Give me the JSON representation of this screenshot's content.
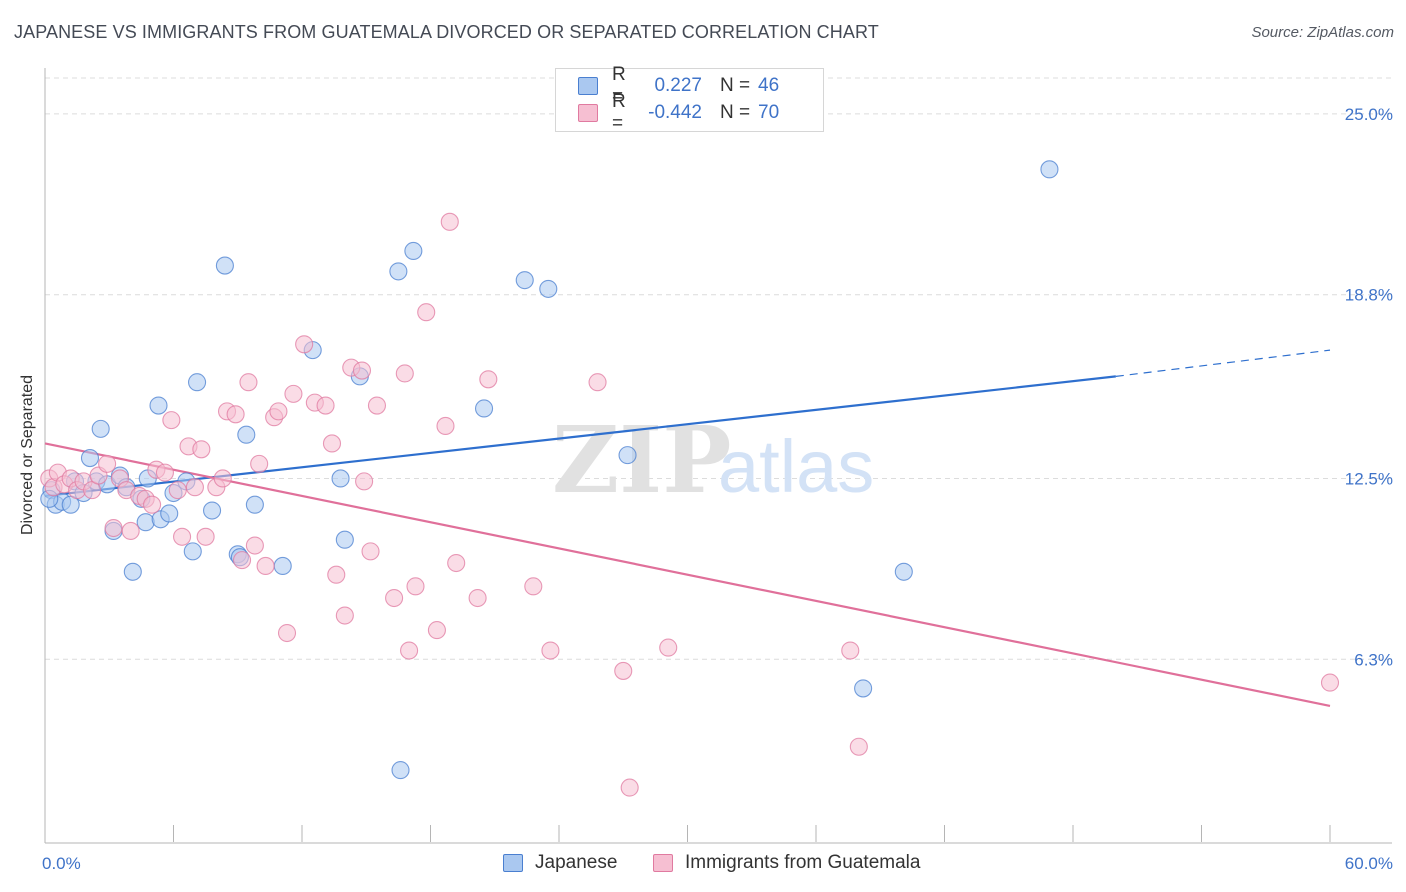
{
  "title": "JAPANESE VS IMMIGRANTS FROM GUATEMALA DIVORCED OR SEPARATED CORRELATION CHART",
  "source": "Source: ZipAtlas.com",
  "watermark": {
    "zip": "ZIP",
    "atlas": "atlas"
  },
  "legend": {
    "r_label": "R =",
    "n_label": "N =",
    "rows": [
      {
        "r_value": "0.227",
        "n_value": "46"
      },
      {
        "r_value": "-0.442",
        "n_value": "70"
      }
    ]
  },
  "colors": {
    "series1_fill": "#aac8f0",
    "series1_stroke": "#4a7fd0",
    "series1_line": "#2e6fce",
    "series2_fill": "#f6bfd2",
    "series2_stroke": "#e07aa0",
    "series2_line": "#e0709a",
    "tick_label": "#3f73c8",
    "grid": "#dcdcdc"
  },
  "chart_data": {
    "type": "scatter",
    "title": "JAPANESE VS IMMIGRANTS FROM GUATEMALA DIVORCED OR SEPARATED CORRELATION CHART",
    "xlabel": "",
    "ylabel": "Divorced or Separated",
    "xlim": [
      0,
      60
    ],
    "ylim": [
      0,
      26.3
    ],
    "x_tick_labels": [
      "0.0%",
      "60.0%"
    ],
    "y_ticks": [
      6.3,
      12.5,
      18.8,
      25.0
    ],
    "y_tick_labels": [
      "6.3%",
      "12.5%",
      "18.8%",
      "25.0%"
    ],
    "grid": true,
    "legend_placement": "top-center",
    "series": [
      {
        "name": "Japanese",
        "r": 0.227,
        "n": 46,
        "trend": {
          "x0": 0,
          "y0": 11.9,
          "x1": 50,
          "y1": 16.0,
          "dash_to_x": 60,
          "dash_to_y": 16.9
        },
        "points": [
          [
            0.3,
            12.1
          ],
          [
            0.5,
            11.6
          ],
          [
            0.8,
            11.7
          ],
          [
            1.2,
            11.6
          ],
          [
            1.4,
            12.4
          ],
          [
            1.8,
            12.0
          ],
          [
            2.1,
            13.2
          ],
          [
            2.6,
            14.2
          ],
          [
            2.4,
            12.4
          ],
          [
            3.2,
            10.7
          ],
          [
            2.9,
            12.3
          ],
          [
            3.5,
            12.6
          ],
          [
            3.8,
            12.2
          ],
          [
            4.1,
            9.3
          ],
          [
            4.5,
            11.8
          ],
          [
            4.7,
            11.0
          ],
          [
            4.8,
            12.5
          ],
          [
            5.4,
            11.1
          ],
          [
            5.3,
            15.0
          ],
          [
            5.8,
            11.3
          ],
          [
            6.0,
            12.0
          ],
          [
            6.6,
            12.4
          ],
          [
            6.9,
            10.0
          ],
          [
            7.1,
            15.8
          ],
          [
            7.8,
            11.4
          ],
          [
            8.4,
            19.8
          ],
          [
            9.0,
            9.9
          ],
          [
            9.1,
            9.8
          ],
          [
            9.4,
            14.0
          ],
          [
            9.8,
            11.6
          ],
          [
            11.1,
            9.5
          ],
          [
            12.5,
            16.9
          ],
          [
            13.8,
            12.5
          ],
          [
            14.0,
            10.4
          ],
          [
            14.7,
            16.0
          ],
          [
            16.5,
            19.6
          ],
          [
            17.2,
            20.3
          ],
          [
            16.6,
            2.5
          ],
          [
            20.5,
            14.9
          ],
          [
            22.4,
            19.3
          ],
          [
            23.5,
            19.0
          ],
          [
            27.2,
            13.3
          ],
          [
            38.2,
            5.3
          ],
          [
            40.1,
            9.3
          ],
          [
            46.9,
            23.1
          ],
          [
            0.2,
            11.8
          ]
        ]
      },
      {
        "name": "Immigrants from Guatemala",
        "r": -0.442,
        "n": 70,
        "trend": {
          "x0": 0,
          "y0": 13.7,
          "x1": 60,
          "y1": 4.7
        },
        "points": [
          [
            0.2,
            12.5
          ],
          [
            0.4,
            12.2
          ],
          [
            0.6,
            12.7
          ],
          [
            0.9,
            12.3
          ],
          [
            1.2,
            12.5
          ],
          [
            1.5,
            12.1
          ],
          [
            1.8,
            12.4
          ],
          [
            2.2,
            12.1
          ],
          [
            2.5,
            12.6
          ],
          [
            2.9,
            13.0
          ],
          [
            3.2,
            10.8
          ],
          [
            3.5,
            12.5
          ],
          [
            3.8,
            12.1
          ],
          [
            4.0,
            10.7
          ],
          [
            4.4,
            11.9
          ],
          [
            4.7,
            11.8
          ],
          [
            5.0,
            11.6
          ],
          [
            5.2,
            12.8
          ],
          [
            5.6,
            12.7
          ],
          [
            5.9,
            14.5
          ],
          [
            6.2,
            12.1
          ],
          [
            6.4,
            10.5
          ],
          [
            6.7,
            13.6
          ],
          [
            7.0,
            12.2
          ],
          [
            7.3,
            13.5
          ],
          [
            7.5,
            10.5
          ],
          [
            8.0,
            12.2
          ],
          [
            8.3,
            12.5
          ],
          [
            8.5,
            14.8
          ],
          [
            8.9,
            14.7
          ],
          [
            9.2,
            9.7
          ],
          [
            9.5,
            15.8
          ],
          [
            9.8,
            10.2
          ],
          [
            10.0,
            13.0
          ],
          [
            10.3,
            9.5
          ],
          [
            10.7,
            14.6
          ],
          [
            10.9,
            14.8
          ],
          [
            11.3,
            7.2
          ],
          [
            11.6,
            15.4
          ],
          [
            12.1,
            17.1
          ],
          [
            12.6,
            15.1
          ],
          [
            13.1,
            15.0
          ],
          [
            13.4,
            13.7
          ],
          [
            13.6,
            9.2
          ],
          [
            14.0,
            7.8
          ],
          [
            14.3,
            16.3
          ],
          [
            14.8,
            16.2
          ],
          [
            14.9,
            12.4
          ],
          [
            15.2,
            10.0
          ],
          [
            15.5,
            15.0
          ],
          [
            16.3,
            8.4
          ],
          [
            16.8,
            16.1
          ],
          [
            17.0,
            6.6
          ],
          [
            17.3,
            8.8
          ],
          [
            17.8,
            18.2
          ],
          [
            18.3,
            7.3
          ],
          [
            18.7,
            14.3
          ],
          [
            18.9,
            21.3
          ],
          [
            19.2,
            9.6
          ],
          [
            20.2,
            8.4
          ],
          [
            20.7,
            15.9
          ],
          [
            22.8,
            8.8
          ],
          [
            23.6,
            6.6
          ],
          [
            25.8,
            15.8
          ],
          [
            27.0,
            5.9
          ],
          [
            27.3,
            1.9
          ],
          [
            29.1,
            6.7
          ],
          [
            38.0,
            3.3
          ],
          [
            37.6,
            6.6
          ],
          [
            60.0,
            5.5
          ]
        ]
      }
    ]
  },
  "bottom_legend": [
    "Japanese",
    "Immigrants from Guatemala"
  ]
}
